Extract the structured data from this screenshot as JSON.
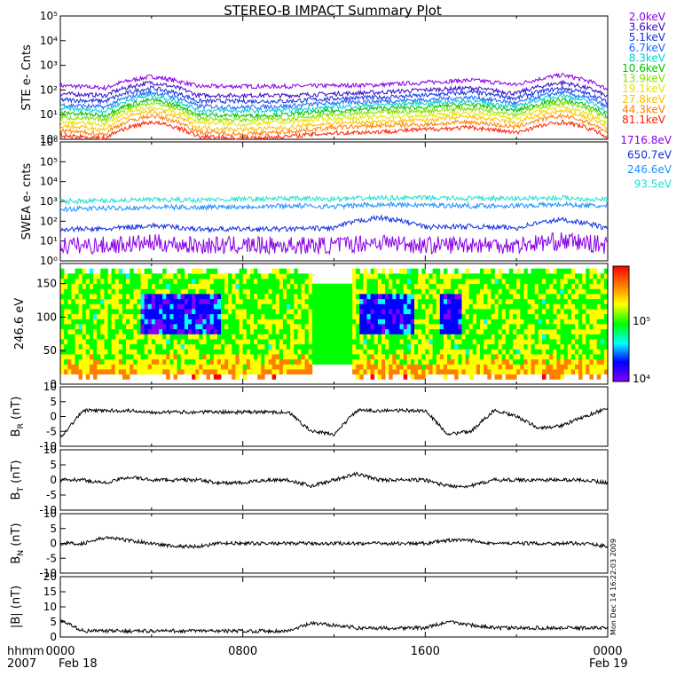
{
  "title": "STEREO-B IMPACT Summary Plot",
  "footer": {
    "row1_label": "hhmm",
    "row2_label": "2007",
    "date_start": "Feb 18",
    "date_end": "Feb 19"
  },
  "side_stamp": "Mon Dec 14 16:22:03 2009",
  "colors": {
    "violet": "#8a00e6",
    "indigo": "#3c0cc8",
    "blue": "#1030e0",
    "royal": "#1e64ff",
    "sky": "#1ea0ff",
    "cyan": "#00d0d0",
    "green": "#00c000",
    "lime": "#80e000",
    "yellow": "#e6e600",
    "orange": "#ffa000",
    "red": "#ff2000"
  },
  "chart_data": [
    {
      "type": "line",
      "panel": "STE",
      "ylabel": "STE e- Cnts",
      "yscale": "log",
      "ylim": [
        1,
        100000
      ],
      "y_ticks": [
        "10⁰",
        "10¹",
        "10²",
        "10³",
        "10⁴",
        "10⁵"
      ],
      "x_ticks": [
        "0000",
        "0800",
        "1600",
        "0000"
      ],
      "x": [
        0,
        2,
        4,
        6,
        8,
        10,
        12,
        14,
        16,
        18,
        20,
        22,
        24
      ],
      "series": [
        {
          "name": "2.0keV",
          "color": "#8a00e6",
          "values": [
            150,
            120,
            350,
            140,
            140,
            140,
            150,
            160,
            200,
            250,
            160,
            400,
            100
          ]
        },
        {
          "name": "3.6keV",
          "color": "#3c0cc8",
          "values": [
            70,
            60,
            200,
            60,
            60,
            60,
            70,
            80,
            100,
            120,
            70,
            200,
            50
          ]
        },
        {
          "name": "5.1keV",
          "color": "#1030e0",
          "values": [
            40,
            35,
            120,
            35,
            35,
            35,
            45,
            50,
            60,
            80,
            45,
            120,
            30
          ]
        },
        {
          "name": "6.7keV",
          "color": "#1e64ff",
          "values": [
            25,
            20,
            80,
            22,
            20,
            22,
            30,
            35,
            40,
            50,
            28,
            80,
            18
          ]
        },
        {
          "name": "8.3keV",
          "color": "#00d0d0",
          "values": [
            18,
            14,
            60,
            15,
            14,
            15,
            20,
            25,
            30,
            35,
            20,
            60,
            12
          ]
        },
        {
          "name": "10.6keV",
          "color": "#00c000",
          "values": [
            12,
            9,
            40,
            10,
            9,
            10,
            14,
            18,
            20,
            25,
            14,
            40,
            8
          ]
        },
        {
          "name": "13.9keV",
          "color": "#80e000",
          "values": [
            8,
            6,
            30,
            7,
            6,
            7,
            10,
            12,
            14,
            18,
            10,
            30,
            6
          ]
        },
        {
          "name": "19.1keV",
          "color": "#e6e600",
          "values": [
            5,
            4,
            20,
            5,
            4,
            5,
            7,
            8,
            9,
            12,
            7,
            20,
            4
          ]
        },
        {
          "name": "27.8keV",
          "color": "#ffc000",
          "values": [
            3.5,
            2.5,
            14,
            3,
            2.5,
            3,
            4.5,
            5,
            6,
            8,
            4.5,
            14,
            2.5
          ]
        },
        {
          "name": "44.3keV",
          "color": "#ff8000",
          "values": [
            2.2,
            1.6,
            9,
            2,
            1.6,
            2,
            3,
            3.5,
            4,
            5,
            3,
            9,
            1.6
          ]
        },
        {
          "name": "81.1keV",
          "color": "#ff2000",
          "values": [
            1.4,
            1.1,
            5,
            1.3,
            1.1,
            1.3,
            1.8,
            2,
            2.5,
            3,
            1.8,
            5,
            1.1
          ]
        }
      ]
    },
    {
      "type": "line",
      "panel": "SWEA",
      "ylabel": "SWEA e- cnts",
      "yscale": "log",
      "ylim": [
        1,
        1000000
      ],
      "y_ticks": [
        "10⁰",
        "10¹",
        "10²",
        "10³",
        "10⁴",
        "10⁵",
        "10⁶"
      ],
      "x": [
        0,
        2,
        4,
        6,
        8,
        10,
        12,
        14,
        16,
        18,
        20,
        22,
        24
      ],
      "series": [
        {
          "name": "1716.8eV",
          "color": "#8a00e6",
          "values": [
            6,
            6,
            8,
            6,
            6,
            6,
            6,
            9,
            6,
            7,
            6,
            10,
            6
          ]
        },
        {
          "name": "650.7eV",
          "color": "#1030e0",
          "values": [
            40,
            40,
            60,
            40,
            40,
            40,
            45,
            150,
            50,
            55,
            45,
            120,
            40
          ]
        },
        {
          "name": "246.6eV",
          "color": "#1e90ff",
          "values": [
            400,
            450,
            500,
            500,
            550,
            600,
            550,
            700,
            650,
            600,
            600,
            700,
            550
          ]
        },
        {
          "name": "93.5eV",
          "color": "#20e0d0",
          "values": [
            1000,
            1100,
            1200,
            1200,
            1300,
            1400,
            1300,
            1500,
            1500,
            1400,
            1400,
            1500,
            1200
          ]
        }
      ]
    },
    {
      "type": "heatmap",
      "panel": "PAD",
      "ylabel": "246.6 eV",
      "ylim": [
        0,
        180
      ],
      "y_ticks": [
        0,
        50,
        100,
        150
      ],
      "colorbar_ticks": [
        "10⁵",
        "10⁴"
      ],
      "colorscale": [
        "#ff0000",
        "#ff8000",
        "#ffff00",
        "#00ff00",
        "#00ffff",
        "#0000ff",
        "#8000ff"
      ]
    },
    {
      "type": "line",
      "panel": "BR",
      "ylabel": "B_R (nT)",
      "ylim": [
        -10,
        10
      ],
      "y_ticks": [
        -10,
        -5,
        0,
        5,
        10
      ],
      "x": [
        0,
        1,
        2,
        3,
        4,
        5,
        6,
        7,
        8,
        9,
        10,
        11,
        12,
        13,
        14,
        15,
        16,
        17,
        18,
        19,
        20,
        21,
        22,
        23,
        24
      ],
      "values": [
        -7,
        2,
        2,
        2,
        1.5,
        1.5,
        1.5,
        1.5,
        1.5,
        1.5,
        1.5,
        -5,
        -6,
        2,
        2,
        2,
        2,
        -6,
        -5,
        2,
        0,
        -4,
        -3,
        0,
        3
      ]
    },
    {
      "type": "line",
      "panel": "BT",
      "ylabel": "B_T (nT)",
      "ylim": [
        -10,
        10
      ],
      "y_ticks": [
        -10,
        -5,
        0,
        5,
        10
      ],
      "x": [
        0,
        1,
        2,
        3,
        4,
        5,
        6,
        7,
        8,
        9,
        10,
        11,
        12,
        13,
        14,
        15,
        16,
        17,
        18,
        19,
        20,
        21,
        22,
        23,
        24
      ],
      "values": [
        0,
        0,
        -1,
        1,
        0,
        0,
        0,
        -1,
        -1,
        0,
        0,
        -2,
        0,
        2,
        0,
        0,
        0,
        -2,
        -2,
        0,
        0,
        0,
        0,
        0,
        -1
      ]
    },
    {
      "type": "line",
      "panel": "BN",
      "ylabel": "B_N (nT)",
      "ylim": [
        -10,
        10
      ],
      "y_ticks": [
        -10,
        -5,
        0,
        5,
        10
      ],
      "x": [
        0,
        1,
        2,
        3,
        4,
        5,
        6,
        7,
        8,
        9,
        10,
        11,
        12,
        13,
        14,
        15,
        16,
        17,
        18,
        19,
        20,
        21,
        22,
        23,
        24
      ],
      "values": [
        0,
        0,
        2,
        1,
        0,
        -1,
        -1,
        0,
        0,
        0,
        0,
        0,
        0,
        0,
        0,
        0,
        0,
        1,
        1,
        0,
        0,
        0,
        0,
        0,
        -1
      ]
    },
    {
      "type": "line",
      "panel": "B",
      "ylabel": "|B| (nT)",
      "ylim": [
        0,
        20
      ],
      "y_ticks": [
        0,
        5,
        10,
        15,
        20
      ],
      "x": [
        0,
        1,
        2,
        3,
        4,
        5,
        6,
        7,
        8,
        9,
        10,
        11,
        12,
        13,
        14,
        15,
        16,
        17,
        18,
        19,
        20,
        21,
        22,
        23,
        24
      ],
      "values": [
        5.5,
        2,
        2,
        2,
        2,
        2,
        2,
        2,
        2,
        2,
        2,
        4.5,
        4,
        3,
        3,
        3,
        3,
        5,
        4,
        3,
        3,
        3,
        3,
        3,
        3
      ]
    }
  ]
}
